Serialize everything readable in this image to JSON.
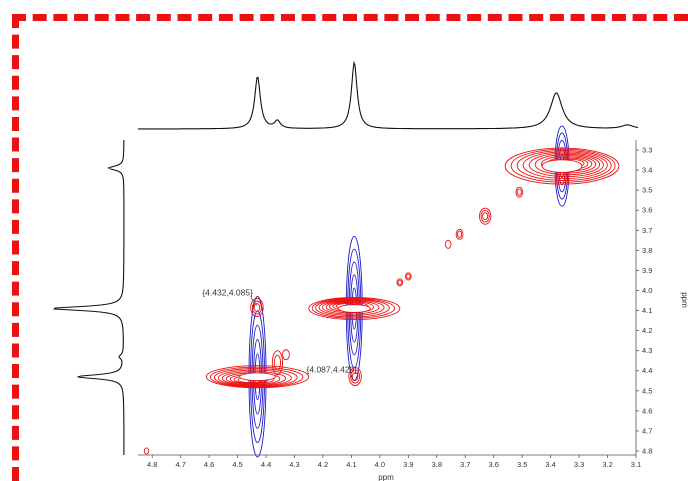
{
  "chart_data": {
    "type": "2D NMR contour spectrum (HSQC/COSY-style, with 1D projections)",
    "title": "",
    "xlabel": "ppm",
    "ylabel": "ppm",
    "xlim": [
      4.85,
      3.1
    ],
    "ylim": [
      3.25,
      4.82
    ],
    "x_reversed": true,
    "x_ticks": [
      4.8,
      4.7,
      4.6,
      4.5,
      4.4,
      4.3,
      4.2,
      4.1,
      4.0,
      3.9,
      3.8,
      3.7,
      3.6,
      3.5,
      3.4,
      3.3,
      3.2,
      3.1
    ],
    "y_ticks": [
      3.3,
      3.4,
      3.5,
      3.6,
      3.7,
      3.8,
      3.9,
      4.0,
      4.1,
      4.2,
      4.3,
      4.4,
      4.5,
      4.6,
      4.7,
      4.8
    ],
    "colors": {
      "positive": "#ee1111",
      "negative": "#1a1acc",
      "frame": "#ee1111",
      "trace": "#111111"
    },
    "top_projection_peaks": [
      {
        "x": 4.43,
        "height": 0.55
      },
      {
        "x": 4.36,
        "height": 0.08
      },
      {
        "x": 4.09,
        "height": 0.7
      },
      {
        "x": 3.38,
        "height": 0.38
      },
      {
        "x": 3.13,
        "height": 0.04
      }
    ],
    "left_projection_peaks": [
      {
        "y": 3.39,
        "height": 0.18
      },
      {
        "y": 4.09,
        "height": 0.85
      },
      {
        "y": 4.33,
        "height": 0.05
      },
      {
        "y": 4.43,
        "height": 0.55
      }
    ],
    "cross_peaks": [
      {
        "x": 4.432,
        "y": 4.085,
        "color": "positive",
        "rx": 0.022,
        "ry": 0.045,
        "rings": 3
      },
      {
        "x": 4.087,
        "y": 4.429,
        "color": "positive",
        "rx": 0.022,
        "ry": 0.045,
        "rings": 3
      },
      {
        "x": 4.82,
        "y": 4.8,
        "color": "positive",
        "rx": 0.008,
        "ry": 0.015,
        "rings": 1
      },
      {
        "x": 3.93,
        "y": 3.96,
        "color": "positive",
        "rx": 0.01,
        "ry": 0.018,
        "rings": 2
      },
      {
        "x": 3.9,
        "y": 3.93,
        "color": "positive",
        "rx": 0.01,
        "ry": 0.018,
        "rings": 2
      },
      {
        "x": 3.76,
        "y": 3.77,
        "color": "positive",
        "rx": 0.01,
        "ry": 0.02,
        "rings": 1
      },
      {
        "x": 3.72,
        "y": 3.72,
        "color": "positive",
        "rx": 0.012,
        "ry": 0.025,
        "rings": 2
      },
      {
        "x": 3.63,
        "y": 3.63,
        "color": "positive",
        "rx": 0.02,
        "ry": 0.04,
        "rings": 3
      },
      {
        "x": 3.51,
        "y": 3.51,
        "color": "positive",
        "rx": 0.012,
        "ry": 0.025,
        "rings": 2
      },
      {
        "x": 4.33,
        "y": 4.32,
        "color": "positive",
        "rx": 0.012,
        "ry": 0.025,
        "rings": 1
      },
      {
        "x": 4.36,
        "y": 4.36,
        "color": "positive",
        "rx": 0.018,
        "ry": 0.06,
        "rings": 2
      }
    ],
    "diagonal_peaks": [
      {
        "x": 4.43,
        "y": 4.43,
        "rx": 0.18,
        "ry": 0.055,
        "rings": 9,
        "neg_ry": 0.4,
        "neg_rx": 0.03
      },
      {
        "x": 4.09,
        "y": 4.09,
        "rx": 0.16,
        "ry": 0.055,
        "rings": 9,
        "neg_ry": 0.36,
        "neg_rx": 0.028
      },
      {
        "x": 3.36,
        "y": 3.38,
        "rx": 0.2,
        "ry": 0.09,
        "rings": 10,
        "neg_ry": 0.2,
        "neg_rx": 0.025
      }
    ],
    "annotations": [
      {
        "text": "{4.432,4.085}",
        "x": 4.432,
        "y": 4.085,
        "anchor": "left"
      },
      {
        "text": "{4.087,4.429}",
        "x": 4.087,
        "y": 4.429,
        "anchor": "right"
      }
    ]
  }
}
